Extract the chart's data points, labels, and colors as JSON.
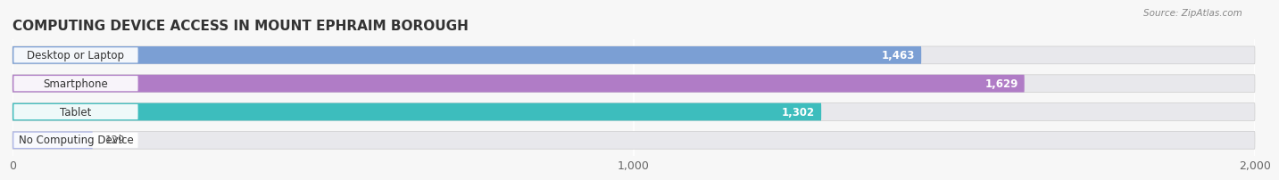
{
  "title": "COMPUTING DEVICE ACCESS IN MOUNT EPHRAIM BOROUGH",
  "source": "Source: ZipAtlas.com",
  "categories": [
    "Desktop or Laptop",
    "Smartphone",
    "Tablet",
    "No Computing Device"
  ],
  "values": [
    1463,
    1629,
    1302,
    129
  ],
  "bar_colors": [
    "#7b9fd4",
    "#b07cc6",
    "#3dbdbd",
    "#b0b8e8"
  ],
  "value_labels": [
    "1,463",
    "1,629",
    "1,302",
    "129"
  ],
  "xlim": [
    0,
    2000
  ],
  "xticks": [
    0,
    1000,
    2000
  ],
  "xticklabels": [
    "0",
    "1,000",
    "2,000"
  ],
  "background_color": "#f7f7f7",
  "bar_bg_color": "#e8e8ec",
  "title_fontsize": 11,
  "label_fontsize": 8.5,
  "value_fontsize": 8.5
}
